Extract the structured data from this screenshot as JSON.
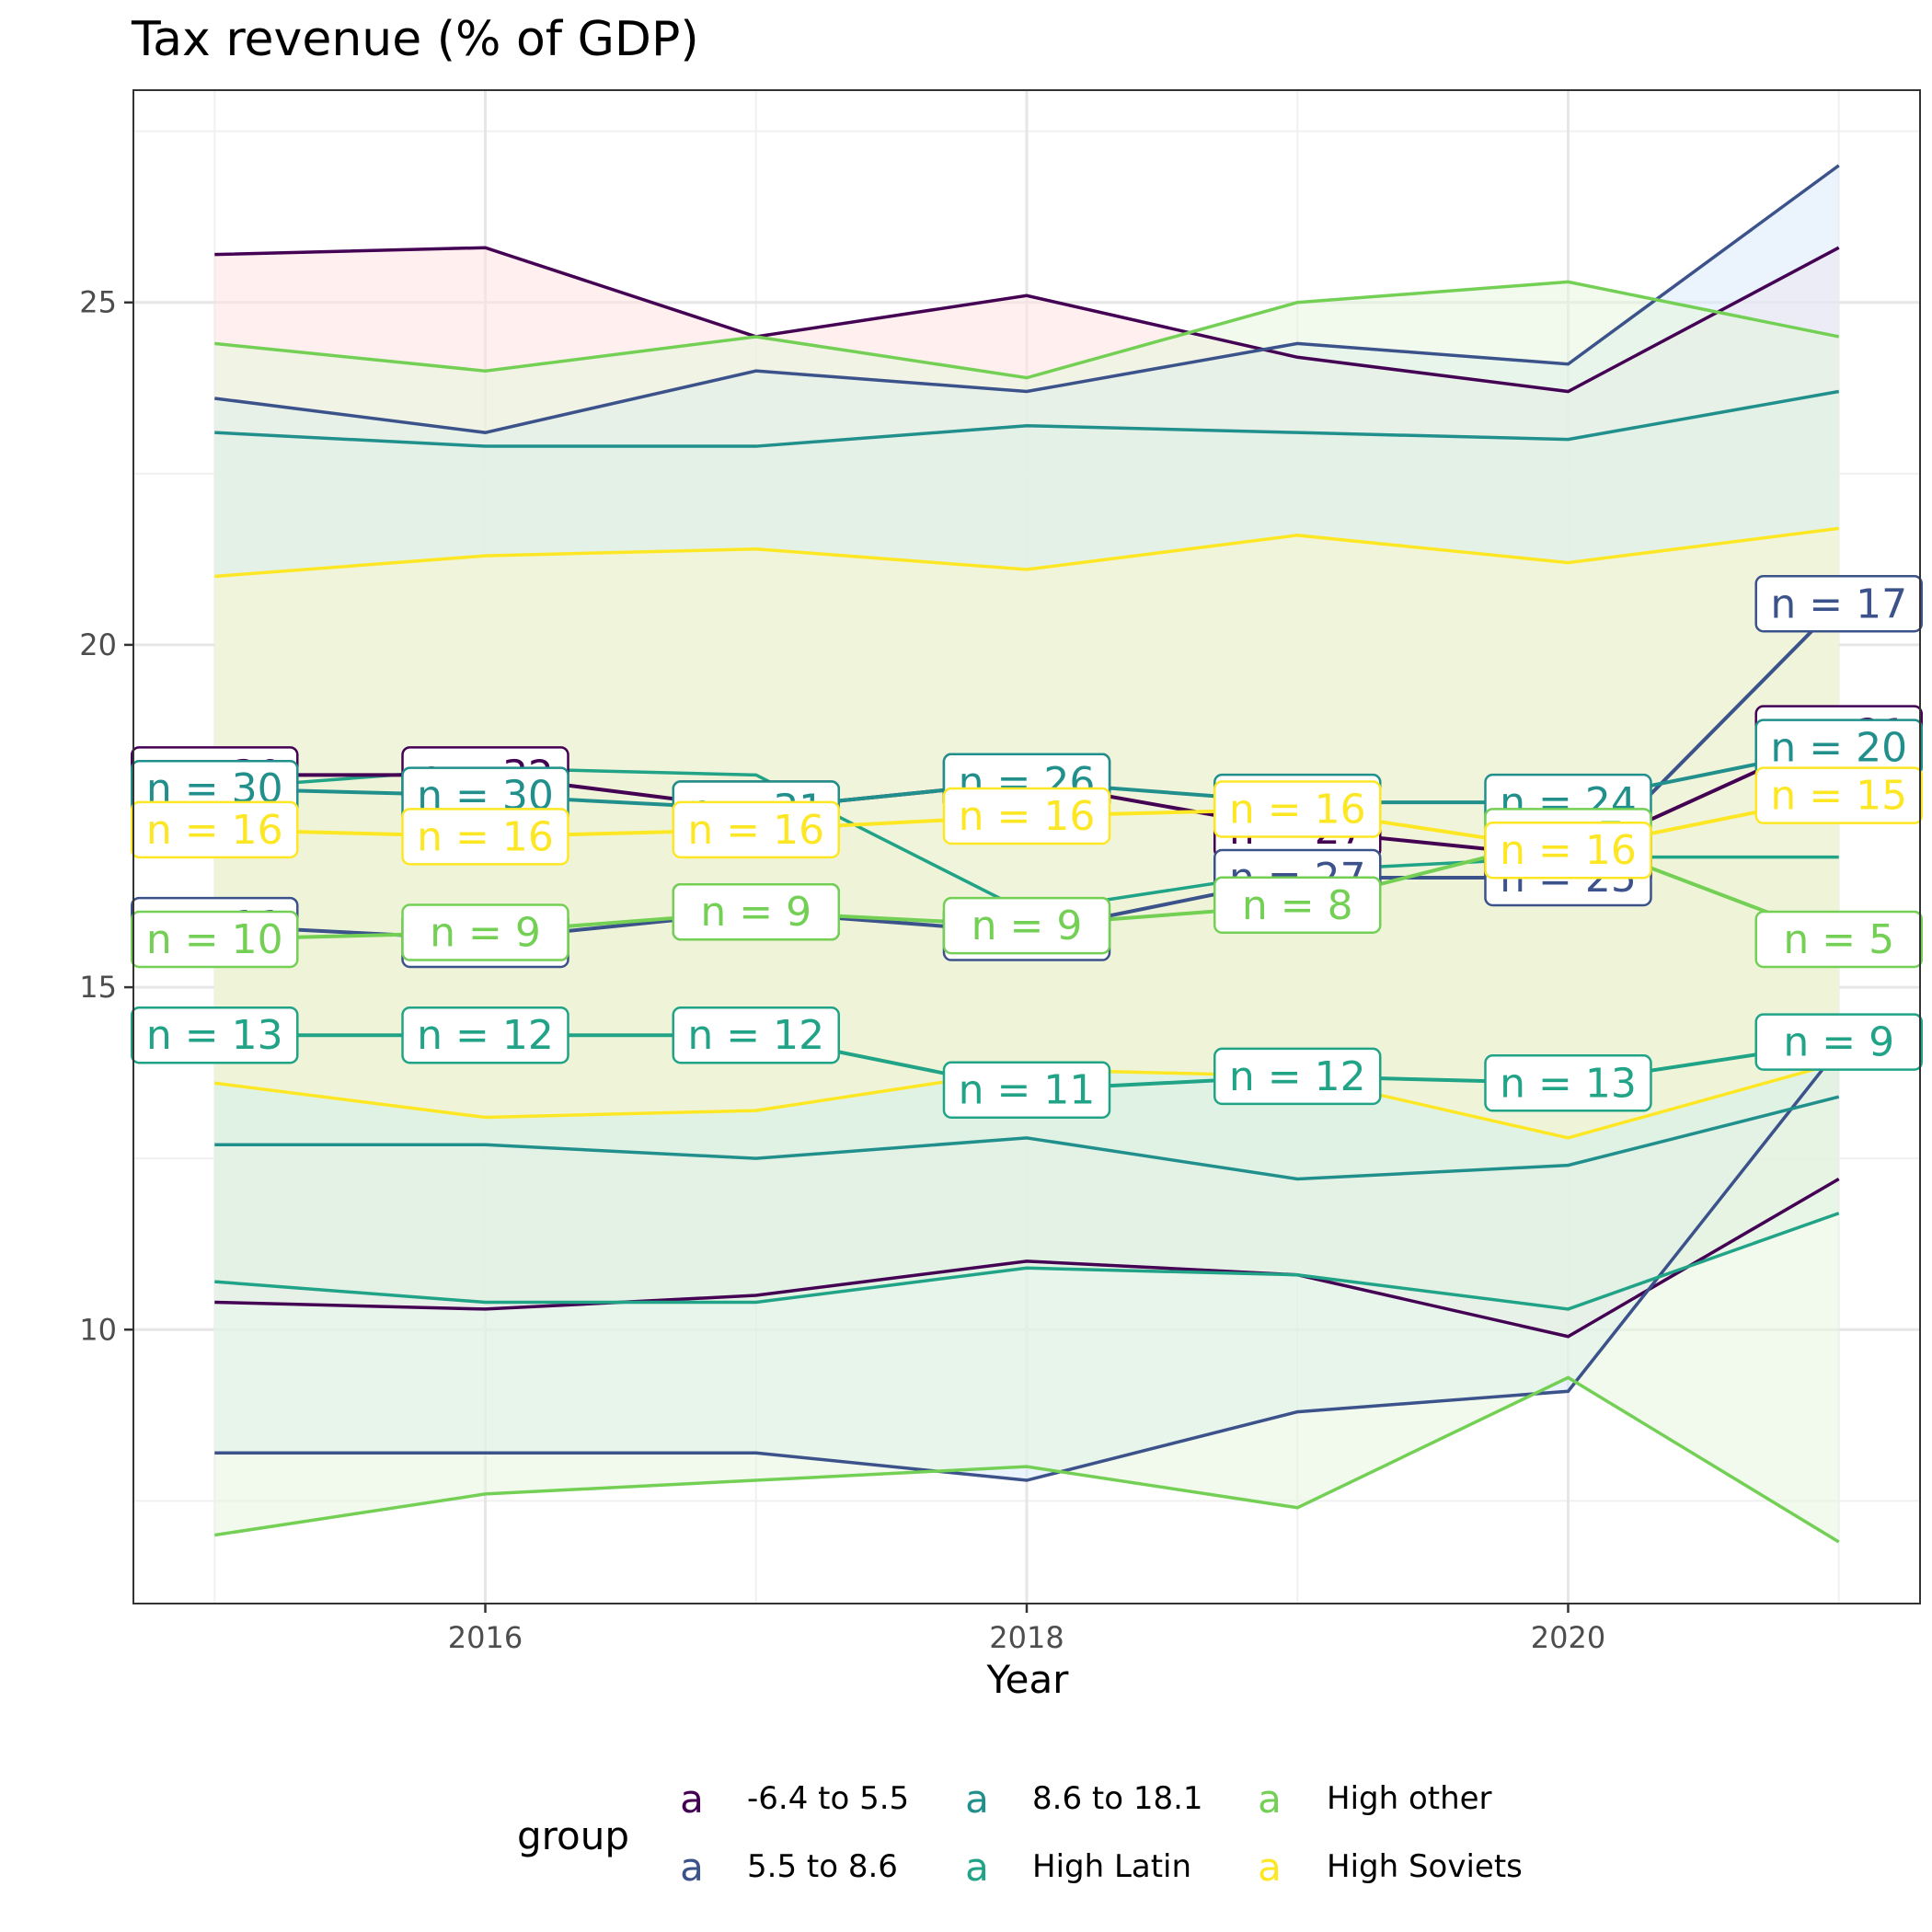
{
  "chart_data": {
    "type": "line",
    "title": "Tax revenue (% of GDP)",
    "xlabel": "Year",
    "ylabel": "",
    "x": [
      2015,
      2016,
      2017,
      2018,
      2019,
      2020,
      2021
    ],
    "x_ticks": [
      2016,
      2018,
      2020
    ],
    "y_ticks": [
      10,
      15,
      20,
      25
    ],
    "xlim": [
      2014.7,
      2021.3
    ],
    "ylim": [
      6.0,
      28.1
    ],
    "grid": true,
    "legend": {
      "title": "group",
      "placement": "bottom",
      "key_glyph": "a",
      "entries": [
        "-6.4 to 5.5",
        "5.5 to 8.6",
        "8.6 to 18.1",
        "High Latin",
        "High other",
        "High Soviets"
      ]
    },
    "series": [
      {
        "name": "-6.4 to 5.5",
        "color": "#440154",
        "fill": "#ffe4e1",
        "mean": [
          18.1,
          18.1,
          17.6,
          18.0,
          17.3,
          16.9,
          18.7
        ],
        "upper": [
          25.7,
          25.8,
          24.5,
          25.1,
          24.2,
          23.7,
          25.8
        ],
        "lower": [
          10.4,
          10.3,
          10.5,
          11.0,
          10.8,
          9.9,
          12.2
        ],
        "n": [
          "n = 30",
          "n = 32",
          "n = 31",
          "n = 26",
          "n = 27",
          "n = 24",
          "n = 21"
        ]
      },
      {
        "name": "5.5 to 8.6",
        "color": "#3b528b",
        "fill": "#dbe9fb",
        "mean": [
          15.9,
          15.7,
          16.1,
          15.8,
          16.6,
          16.6,
          20.6
        ],
        "upper": [
          23.6,
          23.1,
          24.0,
          23.7,
          24.4,
          24.1,
          27.0
        ],
        "lower": [
          8.2,
          8.2,
          8.2,
          7.8,
          8.8,
          9.1,
          14.1
        ],
        "n": [
          "n = 11",
          "n = 9",
          "n = 9",
          "n = 9",
          "n = 27",
          "n = 25",
          "n = 17"
        ]
      },
      {
        "name": "8.6 to 18.1",
        "color": "#21908c",
        "fill": "#d8ecec",
        "mean": [
          17.9,
          17.8,
          17.6,
          18.0,
          17.7,
          17.7,
          18.5
        ],
        "upper": [
          23.1,
          22.9,
          22.9,
          23.2,
          23.1,
          23.0,
          23.7
        ],
        "lower": [
          12.7,
          12.7,
          12.5,
          12.8,
          12.2,
          12.4,
          13.4
        ],
        "n": [
          "n = 30",
          "n = 30",
          "n = 31",
          "n = 26",
          "n = 16",
          "n = 24",
          "n = 20"
        ]
      },
      {
        "name": "High Latin",
        "color": "#20a386",
        "fill": "#d5efe6",
        "mean": [
          14.3,
          14.3,
          14.3,
          13.5,
          13.7,
          13.6,
          14.2
        ],
        "upper": [
          17.9,
          18.2,
          18.1,
          16.1,
          16.7,
          16.9,
          16.9
        ],
        "lower": [
          10.7,
          10.4,
          10.4,
          10.9,
          10.8,
          10.3,
          11.7
        ],
        "n": [
          "n = 13",
          "n = 12",
          "n = 12",
          "n = 11",
          "n = 12",
          "n = 13",
          "n = 9"
        ]
      },
      {
        "name": "High other",
        "color": "#73d055",
        "fill": "#e6f5dd",
        "mean": [
          15.7,
          15.8,
          16.1,
          15.9,
          16.2,
          17.2,
          15.7
        ],
        "upper": [
          24.4,
          24.0,
          24.5,
          23.9,
          25.0,
          25.3,
          24.5
        ],
        "lower": [
          7.0,
          7.6,
          7.8,
          8.0,
          7.4,
          9.3,
          6.9
        ],
        "n": [
          "n = 10",
          "n = 9",
          "n = 9",
          "n = 9",
          "n = 8",
          "n = 7",
          "n = 5"
        ]
      },
      {
        "name": "High Soviets",
        "color": "#fde725",
        "fill": "#fbf5cf",
        "mean": [
          17.3,
          17.2,
          17.3,
          17.5,
          17.6,
          17.0,
          17.8
        ],
        "upper": [
          21.0,
          21.3,
          21.4,
          21.1,
          21.6,
          21.2,
          21.7
        ],
        "lower": [
          13.6,
          13.1,
          13.2,
          13.8,
          13.7,
          12.8,
          13.9
        ],
        "n": [
          "n = 16",
          "n = 16",
          "n = 16",
          "n = 16",
          "n = 16",
          "n = 16",
          "n = 15"
        ]
      }
    ]
  }
}
